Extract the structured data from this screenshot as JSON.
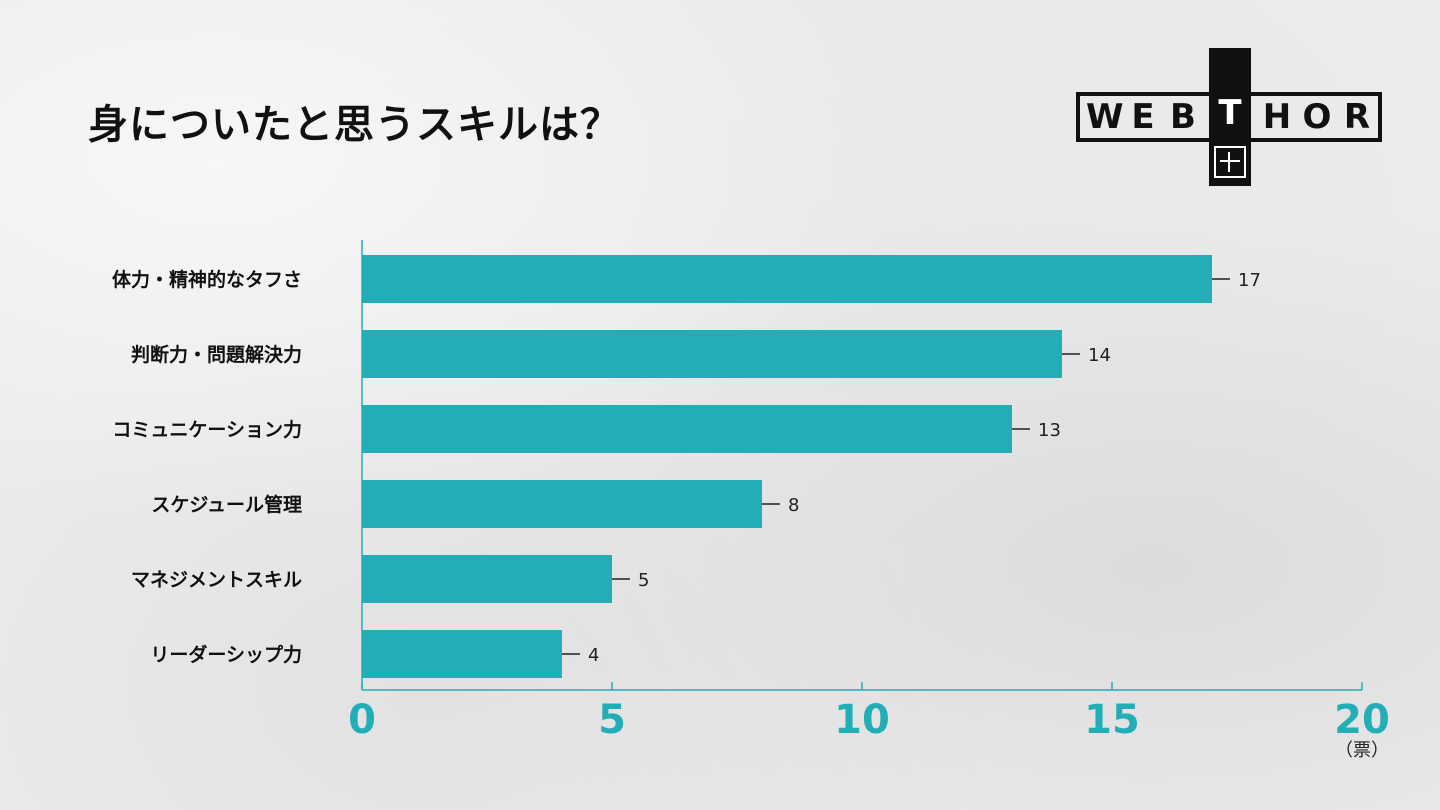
{
  "title": "身についたと思うスキルは？",
  "logo": {
    "letters": [
      "W",
      "E",
      "B",
      "T",
      "H",
      "O",
      "R"
    ],
    "accent_index": 3
  },
  "chart_data": {
    "type": "bar",
    "orientation": "horizontal",
    "categories": [
      "体力・精神的なタフさ",
      "判断力・問題解決力",
      "コミュニケーション力",
      "スケジュール管理",
      "マネジメントスキル",
      "リーダーシップ力"
    ],
    "values": [
      17,
      14,
      13,
      8,
      5,
      4
    ],
    "xlim": [
      0,
      20
    ],
    "xticks": [
      0,
      5,
      10,
      15,
      20
    ],
    "xunit": "（票）",
    "bar_color": "#23adb6",
    "tick_color": "#23adb6",
    "grid": false
  }
}
